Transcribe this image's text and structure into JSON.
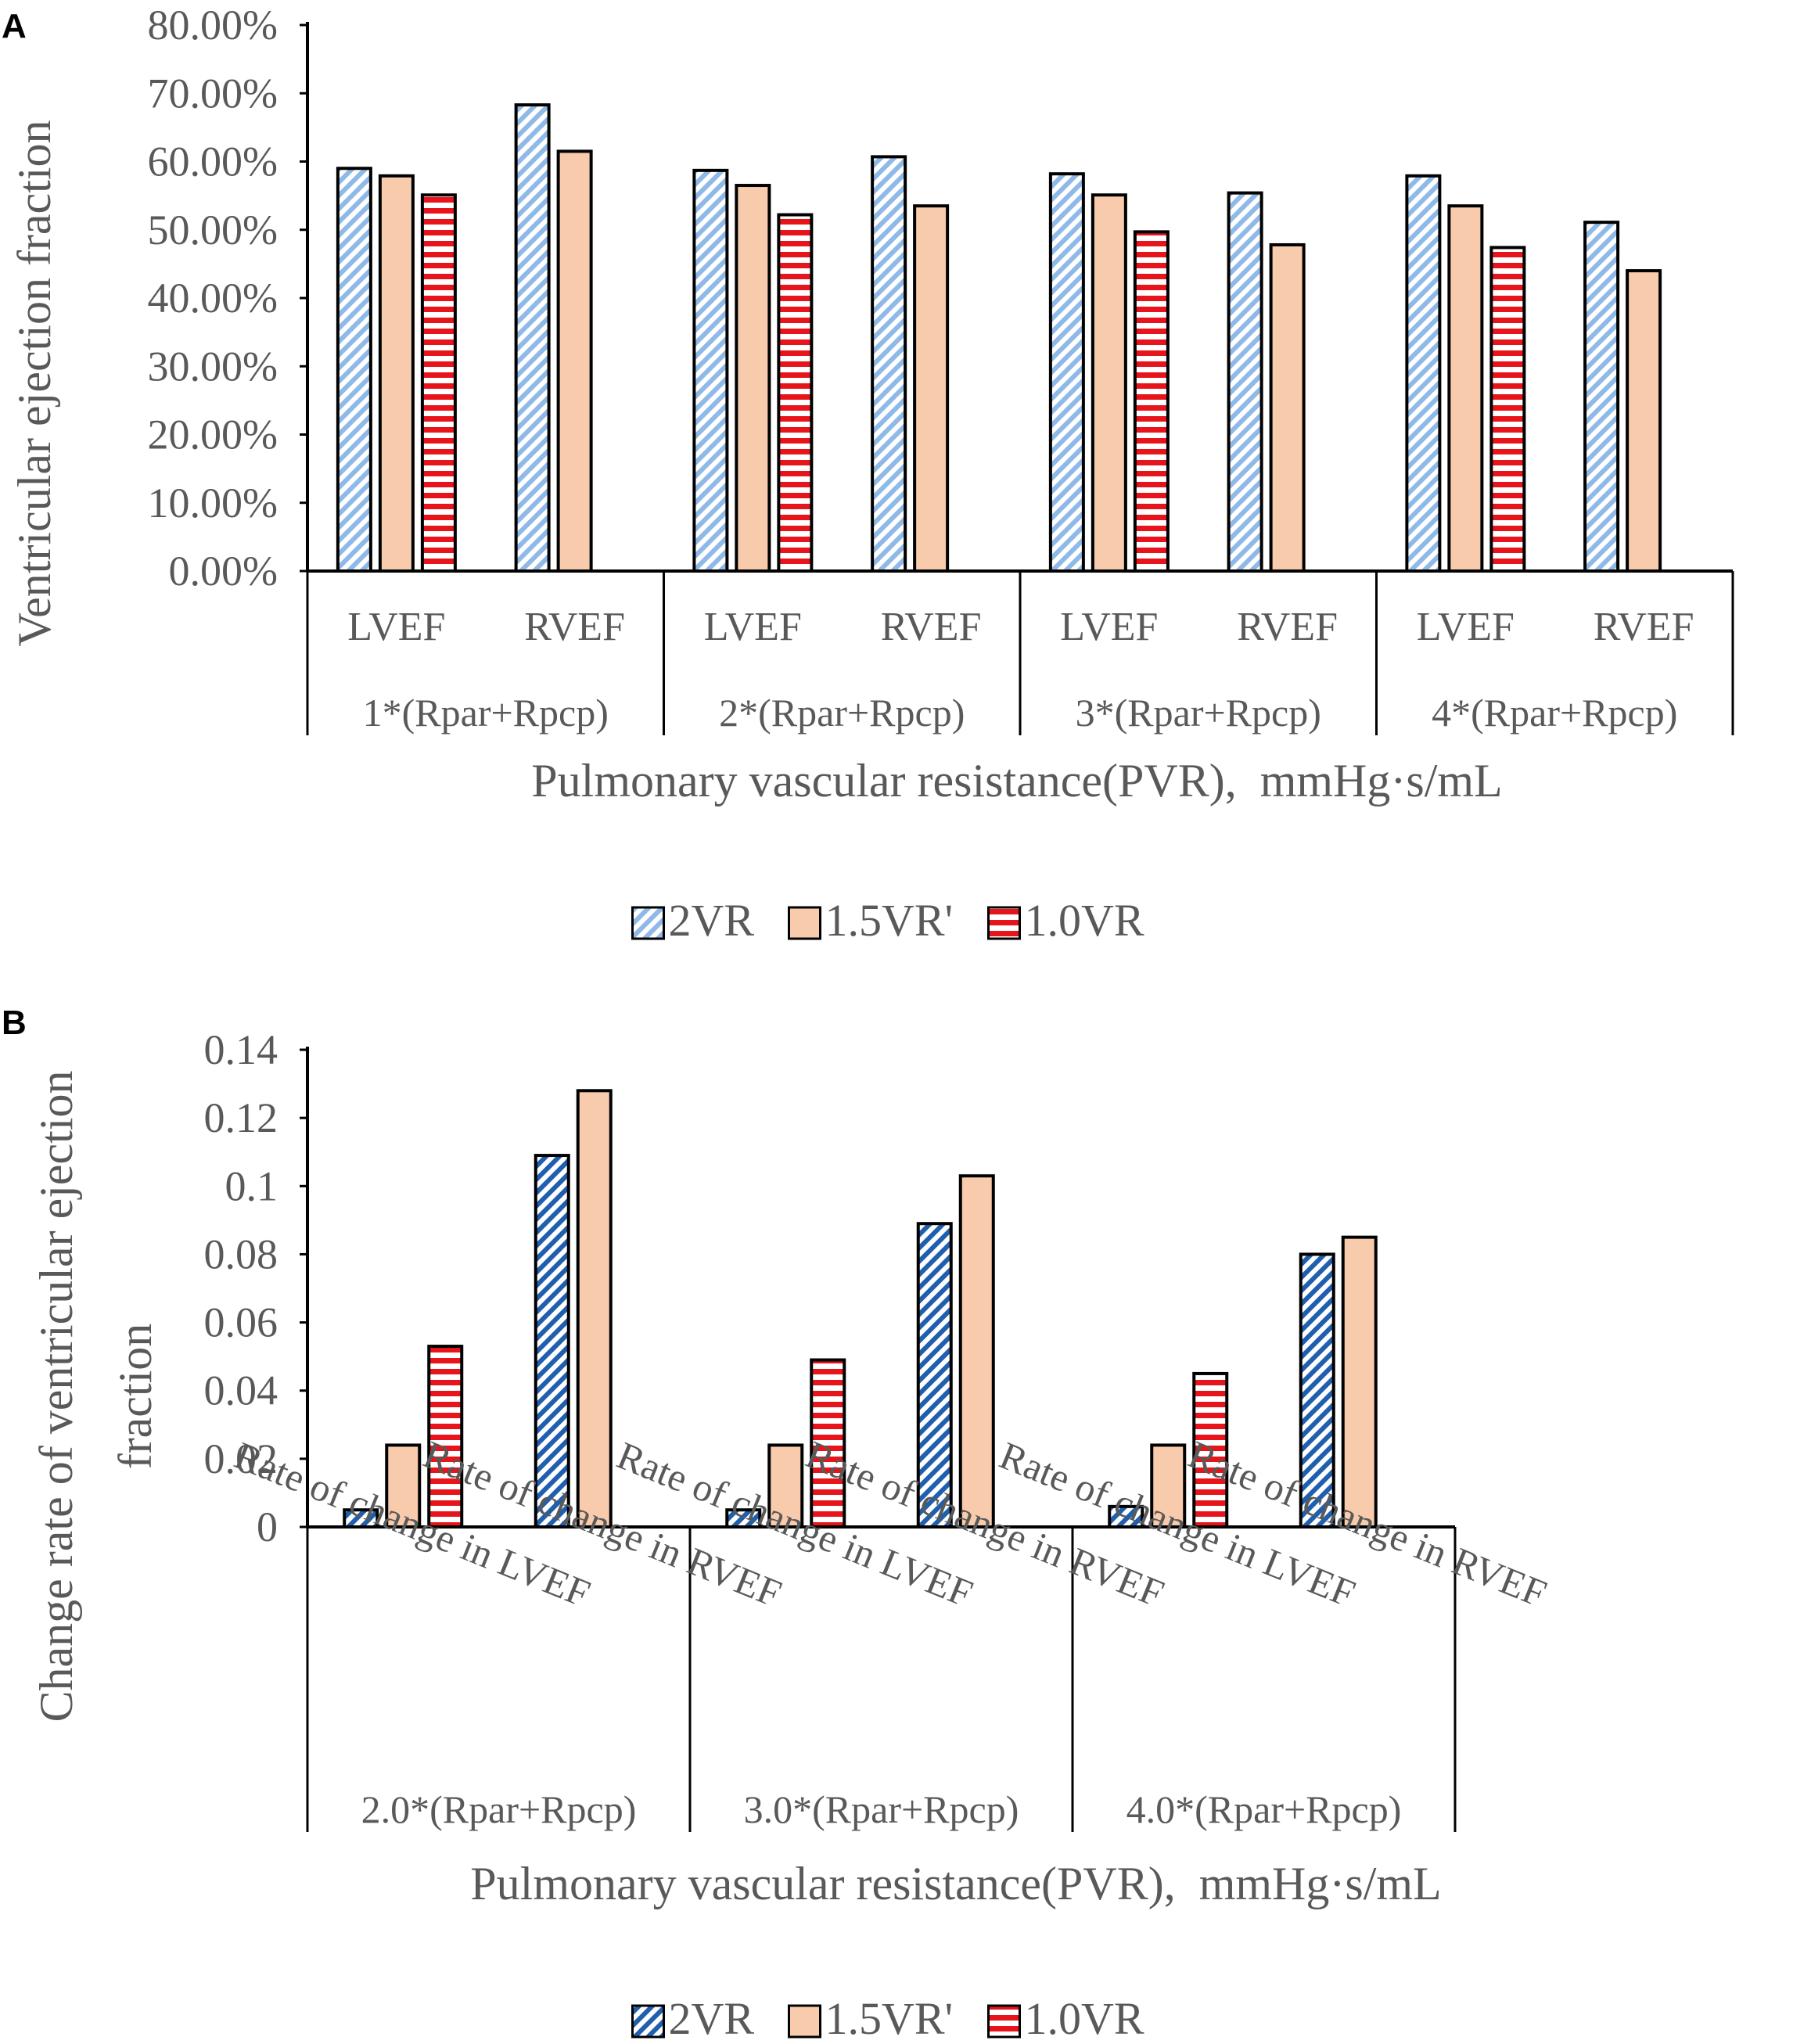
{
  "colors": {
    "s2vr": "#8fb9e6",
    "s2vr_dark": "#1f5fae",
    "s15vr": "#f8cbad",
    "s10vr": "#e8141b",
    "axis": "#000000",
    "text": "#595959"
  },
  "legend": [
    "2VR",
    "1.5VR'",
    "1.0VR"
  ],
  "chart_data": [
    {
      "panel": "A",
      "type": "bar",
      "ylabel": "Ventricular ejection fraction",
      "xlabel": "Pulmonary vascular resistance(PVR),  mmHg·s/mL",
      "ylim": [
        0,
        0.8
      ],
      "yticks": [
        0,
        0.1,
        0.2,
        0.3,
        0.4,
        0.5,
        0.6,
        0.7,
        0.8
      ],
      "ytick_labels": [
        "0.00%",
        "10.00%",
        "20.00%",
        "30.00%",
        "40.00%",
        "50.00%",
        "60.00%",
        "70.00%",
        "80.00%"
      ],
      "groups": [
        "1*(Rpar+Rpcp)",
        "2*(Rpar+Rpcp)",
        "3*(Rpar+Rpcp)",
        "4*(Rpar+Rpcp)"
      ],
      "categories": [
        "LVEF",
        "RVEF",
        "LVEF",
        "RVEF",
        "LVEF",
        "RVEF",
        "LVEF",
        "RVEF"
      ],
      "series": [
        {
          "name": "2VR",
          "values": [
            0.59,
            0.683,
            0.587,
            0.607,
            0.582,
            0.554,
            0.579,
            0.511
          ]
        },
        {
          "name": "1.5VR'",
          "values": [
            0.579,
            0.615,
            0.565,
            0.535,
            0.551,
            0.478,
            0.535,
            0.44
          ]
        },
        {
          "name": "1.0VR",
          "values": [
            0.551,
            null,
            0.522,
            null,
            0.497,
            null,
            0.474,
            null
          ]
        }
      ],
      "legend": [
        "2VR",
        "1.5VR'",
        "1.0VR"
      ]
    },
    {
      "panel": "B",
      "type": "bar",
      "ylabel_lines": [
        "Change rate of ventricular ejection",
        "fraction"
      ],
      "xlabel": "Pulmonary vascular resistance(PVR),  mmHg·s/mL",
      "ylim": [
        0,
        0.14
      ],
      "yticks": [
        0,
        0.02,
        0.04,
        0.06,
        0.08,
        0.1,
        0.12,
        0.14
      ],
      "ytick_labels": [
        "0",
        "0.02",
        "0.04",
        "0.06",
        "0.08",
        "0.1",
        "0.12",
        "0.14"
      ],
      "groups": [
        "2.0*(Rpar+Rpcp)",
        "3.0*(Rpar+Rpcp)",
        "4.0*(Rpar+Rpcp)"
      ],
      "categories": [
        "Rate of change in LVEF",
        "Rate of change in RVEF",
        "Rate of change in LVEF",
        "Rate of change in RVEF",
        "Rate of change in LVEF",
        "Rate of change in RVEF"
      ],
      "series": [
        {
          "name": "2VR",
          "values": [
            0.005,
            0.109,
            0.005,
            0.089,
            0.006,
            0.08
          ]
        },
        {
          "name": "1.5VR'",
          "values": [
            0.024,
            0.128,
            0.024,
            0.103,
            0.024,
            0.085
          ]
        },
        {
          "name": "1.0VR",
          "values": [
            0.053,
            null,
            0.049,
            null,
            0.045,
            null
          ]
        }
      ],
      "legend": [
        "2VR",
        "1.5VR'",
        "1.0VR"
      ]
    }
  ]
}
